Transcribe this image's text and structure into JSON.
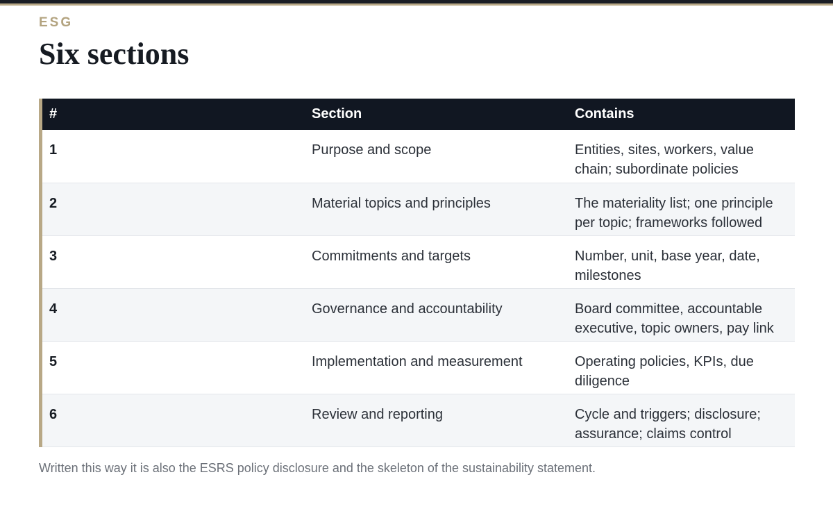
{
  "eyebrow": "ESG",
  "title": "Six sections",
  "table": {
    "headers": [
      "#",
      "Section",
      "Contains"
    ],
    "rows": [
      {
        "num": "1",
        "section": "Purpose and scope",
        "contains": "Entities, sites, workers, value chain; subordinate policies"
      },
      {
        "num": "2",
        "section": "Material topics and principles",
        "contains": "The materiality list; one principle per topic; frameworks followed"
      },
      {
        "num": "3",
        "section": "Commitments and targets",
        "contains": "Number, unit, base year, date, milestones"
      },
      {
        "num": "4",
        "section": "Governance and accountability",
        "contains": "Board committee, accountable executive, topic owners, pay link"
      },
      {
        "num": "5",
        "section": "Implementation and measurement",
        "contains": "Operating policies, KPIs, due diligence"
      },
      {
        "num": "6",
        "section": "Review and reporting",
        "contains": "Cycle and triggers; disclosure; assurance; claims control"
      }
    ]
  },
  "footnote": "Written this way it is also the ESRS policy disclosure and the skeleton of the sustainability statement.",
  "colors": {
    "accent": "#b8a886",
    "header_bg": "#111722",
    "title": "#161b22"
  }
}
